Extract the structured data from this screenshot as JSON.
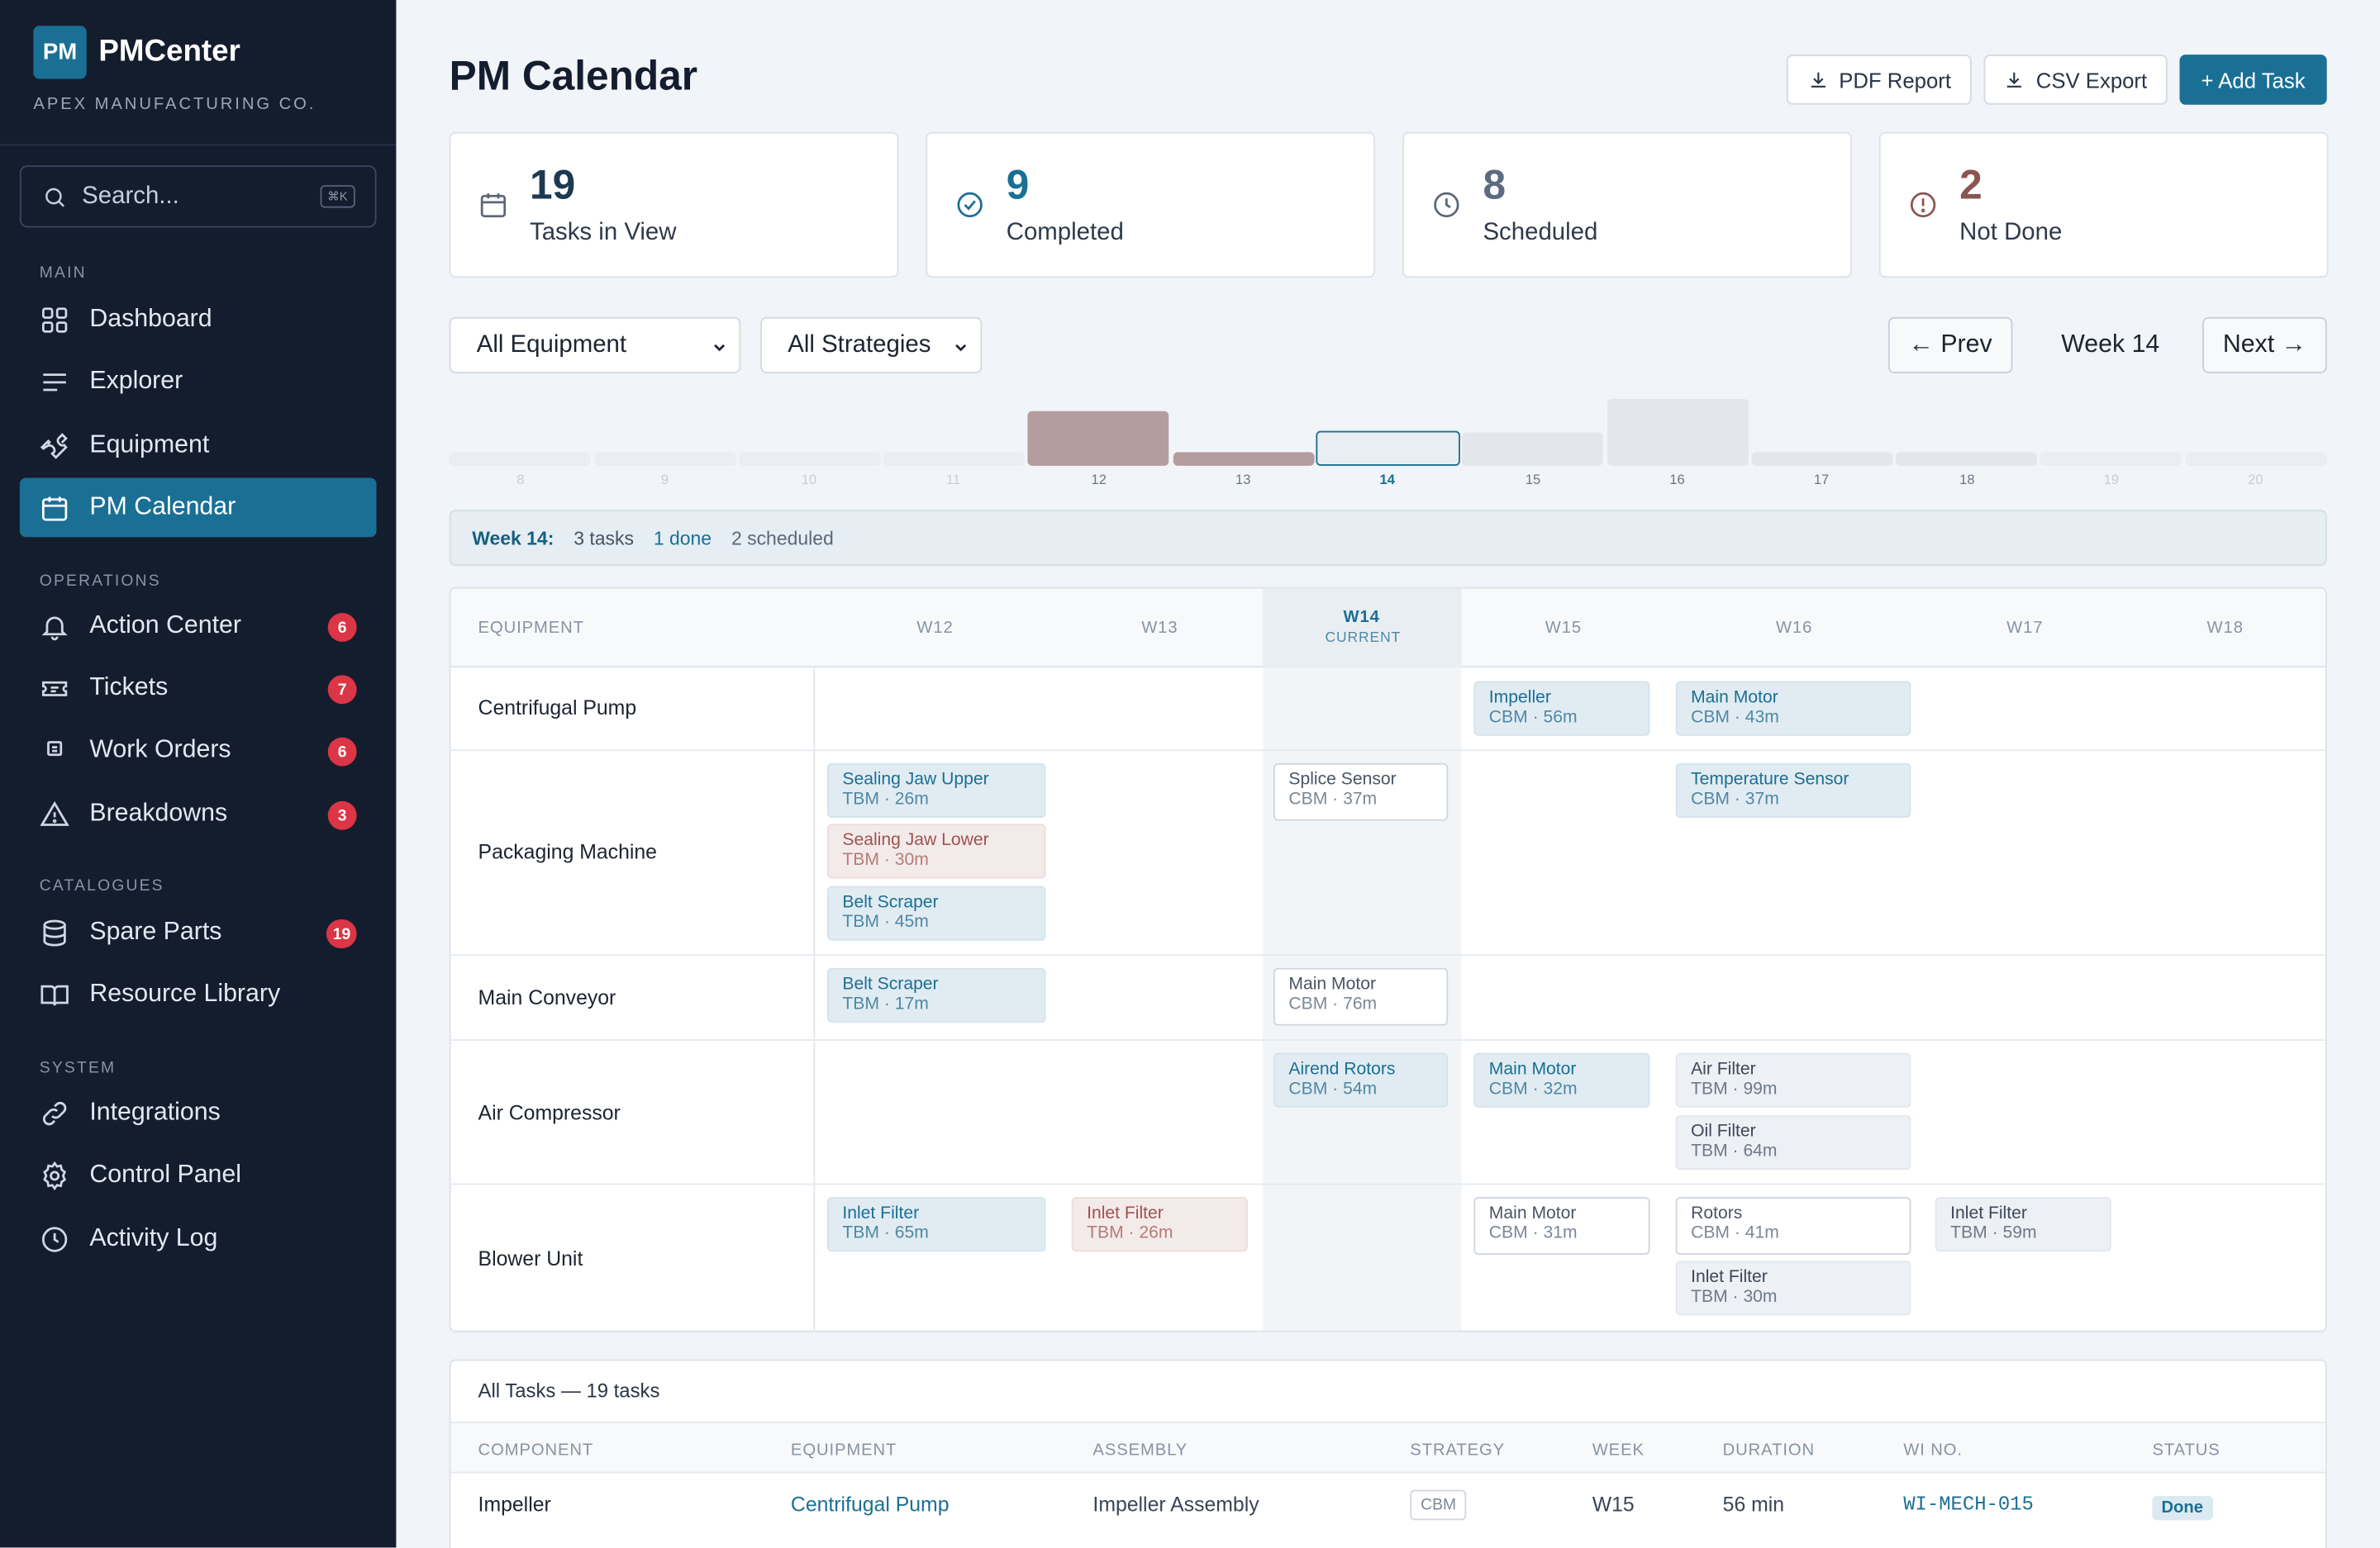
{
  "sidebar": {
    "logo": "PM",
    "brand": "PMCenter",
    "company": "APEX MANUFACTURING CO.",
    "search_placeholder": "Search...",
    "search_kbd": "⌘K",
    "sections": {
      "main": "MAIN",
      "operations": "OPERATIONS",
      "catalogues": "CATALOGUES",
      "system": "SYSTEM"
    },
    "items": [
      {
        "label": "Dashboard",
        "icon": "grid-icon"
      },
      {
        "label": "Explorer",
        "icon": "list-icon"
      },
      {
        "label": "Equipment",
        "icon": "wrench-icon"
      },
      {
        "label": "PM Calendar",
        "icon": "calendar-icon",
        "active": true
      },
      {
        "label": "Action Center",
        "icon": "bell-icon",
        "badge": "6"
      },
      {
        "label": "Tickets",
        "icon": "ticket-icon",
        "badge": "7"
      },
      {
        "label": "Work Orders",
        "icon": "clipboard-icon",
        "badge": "6"
      },
      {
        "label": "Breakdowns",
        "icon": "warning-icon",
        "badge": "3"
      },
      {
        "label": "Spare Parts",
        "icon": "database-icon",
        "badge": "19"
      },
      {
        "label": "Resource Library",
        "icon": "book-icon"
      },
      {
        "label": "Integrations",
        "icon": "link-icon"
      },
      {
        "label": "Control Panel",
        "icon": "gear-icon"
      },
      {
        "label": "Activity Log",
        "icon": "clock-icon"
      }
    ]
  },
  "header": {
    "title": "PM Calendar",
    "pdf_label": "PDF Report",
    "csv_label": "CSV Export",
    "add_label": "+ Add Task"
  },
  "stats": [
    {
      "value": "19",
      "label": "Tasks in View",
      "color": "#1e3a52"
    },
    {
      "value": "9",
      "label": "Completed",
      "color": "#1a6f94"
    },
    {
      "value": "8",
      "label": "Scheduled",
      "color": "#5c6b80"
    },
    {
      "value": "2",
      "label": "Not Done",
      "color": "#8b5551"
    }
  ],
  "filters": {
    "equipment": "All Equipment",
    "strategy": "All Strategies",
    "prev_label": "← Prev",
    "next_label": "Next →",
    "week_label": "Week 14"
  },
  "week_strip": {
    "weeks": [
      "8",
      "9",
      "10",
      "11",
      "12",
      "13",
      "14",
      "15",
      "16",
      "17",
      "18",
      "19",
      "20"
    ],
    "current": "14"
  },
  "week_summary": {
    "week": "Week 14:",
    "tasks": "3 tasks",
    "done": "1 done",
    "scheduled": "2 scheduled"
  },
  "calendar": {
    "equipment_header": "EQUIPMENT",
    "columns": [
      "W12",
      "W13",
      "W14",
      "W15",
      "W16",
      "W17",
      "W18"
    ],
    "current_tag": "CURRENT",
    "rows": [
      {
        "equipment": "Centrifugal Pump",
        "tasks": [
          {
            "name": "Impeller",
            "meta": "CBM · 56m"
          },
          {
            "name": "Main Motor",
            "meta": "CBM · 43m"
          }
        ]
      },
      {
        "equipment": "Packaging Machine",
        "tasks": [
          {
            "name": "Sealing Jaw Upper",
            "meta": "TBM · 26m"
          },
          {
            "name": "Sealing Jaw Lower",
            "meta": "TBM · 30m"
          },
          {
            "name": "Belt Scraper",
            "meta": "TBM · 45m"
          },
          {
            "name": "Splice Sensor",
            "meta": "CBM · 37m"
          },
          {
            "name": "Temperature Sensor",
            "meta": "CBM · 37m"
          }
        ]
      },
      {
        "equipment": "Main Conveyor",
        "tasks": [
          {
            "name": "Belt Scraper",
            "meta": "TBM · 17m"
          },
          {
            "name": "Main Motor",
            "meta": "CBM · 76m"
          }
        ]
      },
      {
        "equipment": "Air Compressor",
        "tasks": [
          {
            "name": "Airend Rotors",
            "meta": "CBM · 54m"
          },
          {
            "name": "Main Motor",
            "meta": "CBM · 32m"
          },
          {
            "name": "Air Filter",
            "meta": "TBM · 99m"
          },
          {
            "name": "Oil Filter",
            "meta": "TBM · 64m"
          }
        ]
      },
      {
        "equipment": "Blower Unit",
        "tasks": [
          {
            "name": "Inlet Filter",
            "meta": "TBM · 65m"
          },
          {
            "name": "Inlet Filter",
            "meta": "TBM · 26m"
          },
          {
            "name": "Main Motor",
            "meta": "CBM · 31m"
          },
          {
            "name": "Rotors",
            "meta": "CBM · 41m"
          },
          {
            "name": "Inlet Filter",
            "meta": "TBM · 30m"
          },
          {
            "name": "Inlet Filter",
            "meta": "TBM · 59m"
          }
        ]
      }
    ]
  },
  "task_table": {
    "title": "All Tasks — 19 tasks",
    "headers": [
      "COMPONENT",
      "EQUIPMENT",
      "ASSEMBLY",
      "STRATEGY",
      "WEEK",
      "DURATION",
      "WI NO.",
      "STATUS"
    ],
    "rows": [
      {
        "component": "Impeller",
        "equipment": "Centrifugal Pump",
        "assembly": "Impeller Assembly",
        "strategy": "CBM",
        "week": "W15",
        "duration": "56 min",
        "wi": "WI-MECH-015",
        "status": "Done"
      }
    ]
  }
}
